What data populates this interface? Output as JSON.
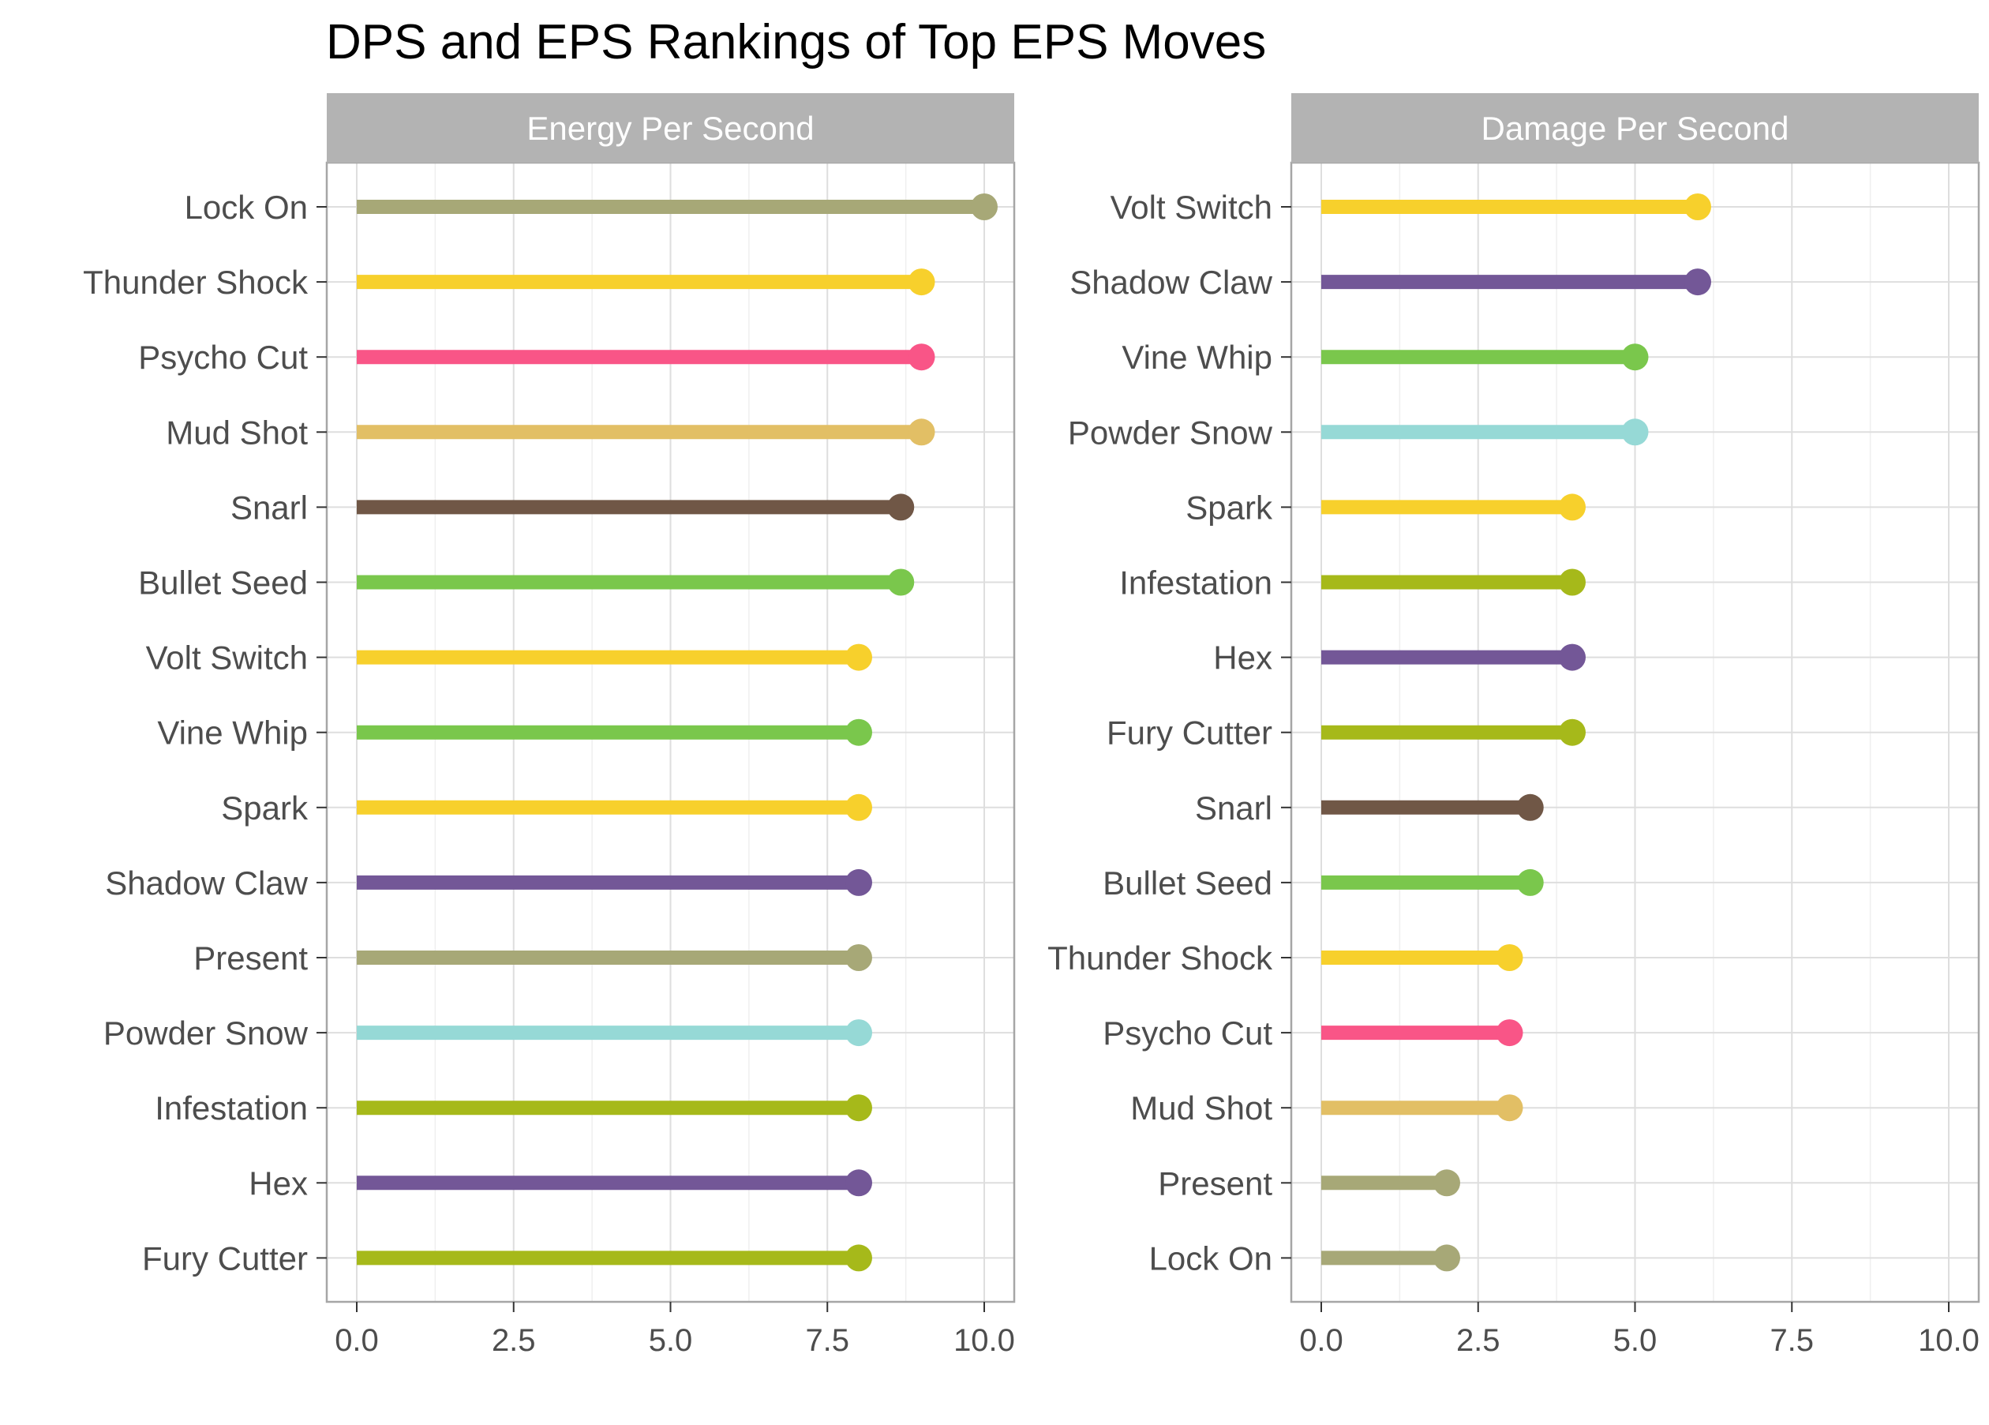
{
  "chart_data": {
    "type": "lollipop",
    "title": "DPS and EPS Rankings of Top EPS Moves",
    "xlim": [
      0,
      10
    ],
    "x_ticks": [
      "0.0",
      "2.5",
      "5.0",
      "7.5",
      "10.0"
    ],
    "grid": true,
    "panels": [
      {
        "name": "Energy Per Second",
        "points": [
          {
            "label": "Lock On",
            "value": 10.0,
            "color": "#a7a877"
          },
          {
            "label": "Thunder Shock",
            "value": 9.0,
            "color": "#f7d02c"
          },
          {
            "label": "Psycho Cut",
            "value": 9.0,
            "color": "#f95587"
          },
          {
            "label": "Mud Shot",
            "value": 9.0,
            "color": "#e2bf65"
          },
          {
            "label": "Snarl",
            "value": 8.67,
            "color": "#705746"
          },
          {
            "label": "Bullet Seed",
            "value": 8.67,
            "color": "#7ac74c"
          },
          {
            "label": "Volt Switch",
            "value": 8.0,
            "color": "#f7d02c"
          },
          {
            "label": "Vine Whip",
            "value": 8.0,
            "color": "#7ac74c"
          },
          {
            "label": "Spark",
            "value": 8.0,
            "color": "#f7d02c"
          },
          {
            "label": "Shadow Claw",
            "value": 8.0,
            "color": "#735797"
          },
          {
            "label": "Present",
            "value": 8.0,
            "color": "#a7a877"
          },
          {
            "label": "Powder Snow",
            "value": 8.0,
            "color": "#96d9d6"
          },
          {
            "label": "Infestation",
            "value": 8.0,
            "color": "#a6b91a"
          },
          {
            "label": "Hex",
            "value": 8.0,
            "color": "#735797"
          },
          {
            "label": "Fury Cutter",
            "value": 8.0,
            "color": "#a6b91a"
          }
        ]
      },
      {
        "name": "Damage Per Second",
        "points": [
          {
            "label": "Volt Switch",
            "value": 6.0,
            "color": "#f7d02c"
          },
          {
            "label": "Shadow Claw",
            "value": 6.0,
            "color": "#735797"
          },
          {
            "label": "Vine Whip",
            "value": 5.0,
            "color": "#7ac74c"
          },
          {
            "label": "Powder Snow",
            "value": 5.0,
            "color": "#96d9d6"
          },
          {
            "label": "Spark",
            "value": 4.0,
            "color": "#f7d02c"
          },
          {
            "label": "Infestation",
            "value": 4.0,
            "color": "#a6b91a"
          },
          {
            "label": "Hex",
            "value": 4.0,
            "color": "#735797"
          },
          {
            "label": "Fury Cutter",
            "value": 4.0,
            "color": "#a6b91a"
          },
          {
            "label": "Snarl",
            "value": 3.33,
            "color": "#705746"
          },
          {
            "label": "Bullet Seed",
            "value": 3.33,
            "color": "#7ac74c"
          },
          {
            "label": "Thunder Shock",
            "value": 3.0,
            "color": "#f7d02c"
          },
          {
            "label": "Psycho Cut",
            "value": 3.0,
            "color": "#f95587"
          },
          {
            "label": "Mud Shot",
            "value": 3.0,
            "color": "#e2bf65"
          },
          {
            "label": "Present",
            "value": 2.0,
            "color": "#a7a877"
          },
          {
            "label": "Lock On",
            "value": 2.0,
            "color": "#a7a877"
          }
        ]
      }
    ],
    "colors": {
      "strip_background": "#b3b3b3",
      "grid_major": "#dedede",
      "grid_minor": "#efefef",
      "panel_border": "#a6a6a6"
    }
  }
}
